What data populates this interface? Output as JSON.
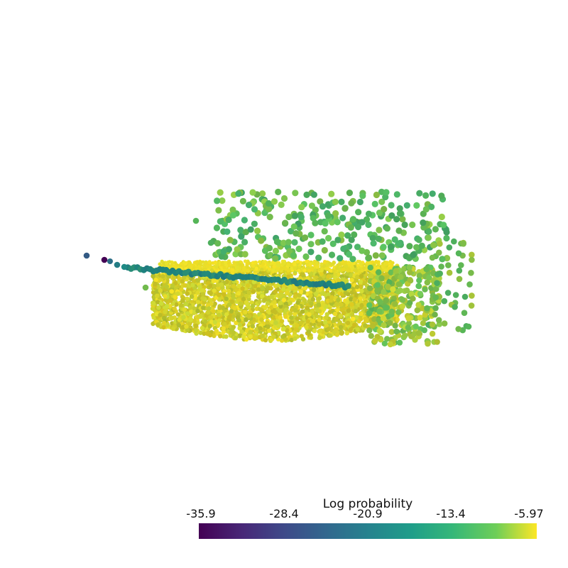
{
  "chart_data": {
    "type": "scatter",
    "colorbar": {
      "title": "Log probability",
      "colormap": "viridis",
      "ticks": [
        "-35.9",
        "-28.4",
        "-20.9",
        "-13.4",
        "-5.97"
      ],
      "min": -35.9,
      "max": -5.97
    },
    "stops": [
      "#440154",
      "#3b528b",
      "#21918c",
      "#5ec962",
      "#fde725"
    ]
  }
}
